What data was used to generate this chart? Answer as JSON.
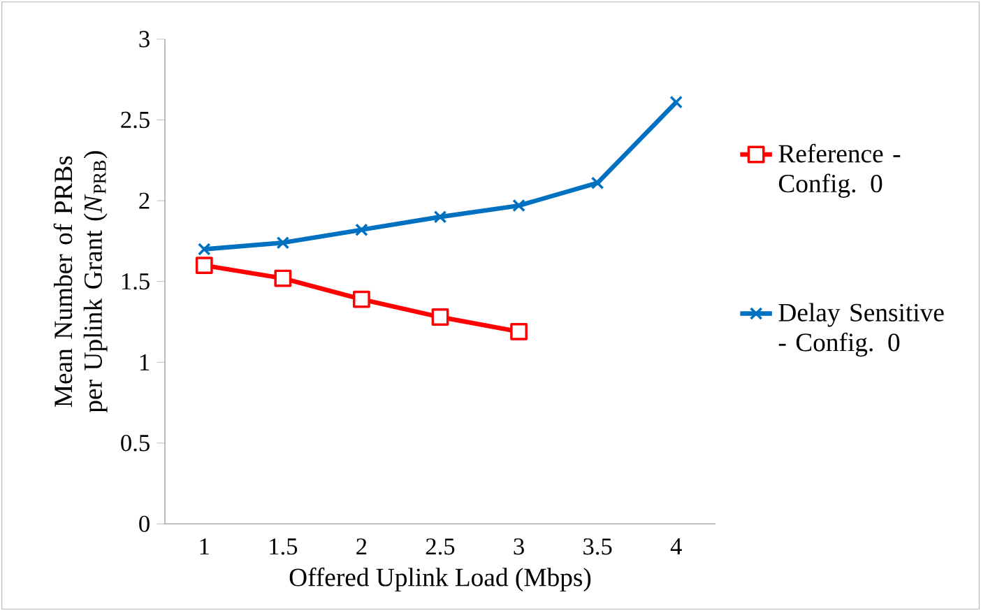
{
  "chart_data": {
    "type": "line",
    "xlabel": "Offered Uplink Load (Mbps)",
    "ylabel": "Mean Number of PRBs per Uplink Grant (*N*$_{PRB}$)",
    "categories": [
      "1",
      "1.5",
      "2",
      "2.5",
      "3",
      "3.5",
      "4"
    ],
    "series": [
      {
        "name": "Reference - Config. 0",
        "color": "#ff0000",
        "marker": "square",
        "values": [
          1.6,
          1.52,
          1.39,
          1.28,
          1.19,
          null,
          null
        ]
      },
      {
        "name": "Delay Sensitive - Config. 0",
        "color": "#0070c0",
        "marker": "cross",
        "values": [
          1.7,
          1.74,
          1.82,
          1.9,
          1.97,
          2.11,
          2.61
        ]
      }
    ],
    "ylim": [
      0,
      3
    ],
    "yticks": [
      0,
      0.5,
      1,
      1.5,
      2,
      2.5,
      3
    ],
    "grid": false,
    "legend": "right",
    "line_style": "solid"
  }
}
